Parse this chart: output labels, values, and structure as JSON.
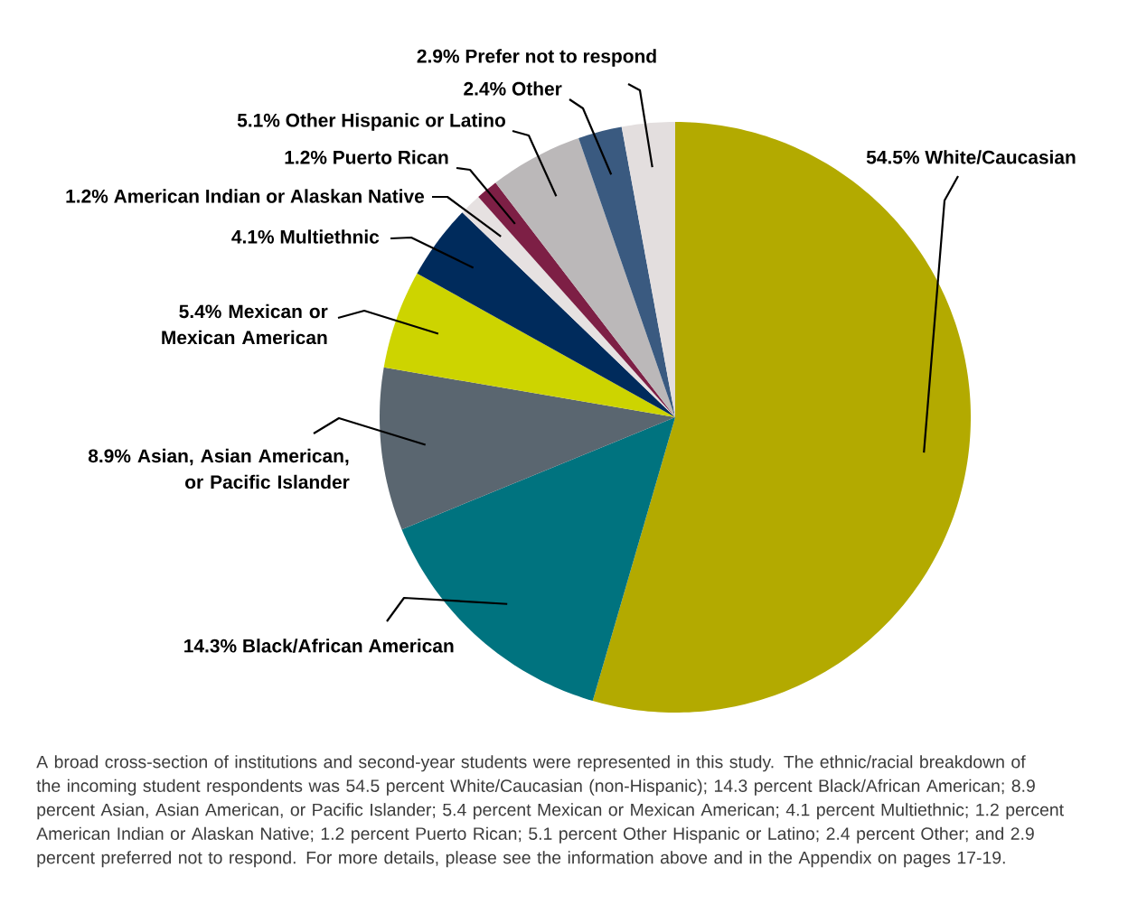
{
  "chart_data": {
    "type": "pie",
    "categories": [
      "White/Caucasian",
      "Black/African American",
      "Asian, Asian American, or Pacific Islander",
      "Mexican or Mexican American",
      "Multiethnic",
      "American Indian or Alaskan Native",
      "Puerto Rican",
      "Other Hispanic or Latino",
      "Other",
      "Prefer not to respond"
    ],
    "values": [
      54.5,
      14.3,
      8.9,
      5.4,
      4.1,
      1.2,
      1.2,
      5.1,
      2.4,
      2.9
    ],
    "value_labels": [
      "54.5%",
      "14.3%",
      "8.9%",
      "5.4%",
      "4.1%",
      "1.2%",
      "1.2%",
      "5.1%",
      "2.4%",
      "2.9%"
    ],
    "colors": [
      "#b3aa00",
      "#00737f",
      "#5a6670",
      "#cdd400",
      "#002b5c",
      "#e6e1e1",
      "#7d1f45",
      "#bbb8b9",
      "#3a5a80",
      "#e3dede"
    ],
    "annotations": [
      "A broad cross-section of institutions and second-year students were represented in this study. The ethnic/racial breakdown of the incoming student respondents was 54.5 percent White/Caucasian (non-Hispanic); 14.3 percent Black/African American; 8.9 percent Asian, Asian American, or Pacific Islander; 5.4 percent Mexican or Mexican American; 4.1 percent Multiethnic; 1.2 percent American Indian or Alaskan Native; 1.2 percent Puerto Rican; 5.1 percent Other Hispanic or Latino; 2.4 percent Other; and 2.9 percent preferred not to respond. For more details, please see the information above and in the Appendix on pages 17-19."
    ]
  }
}
